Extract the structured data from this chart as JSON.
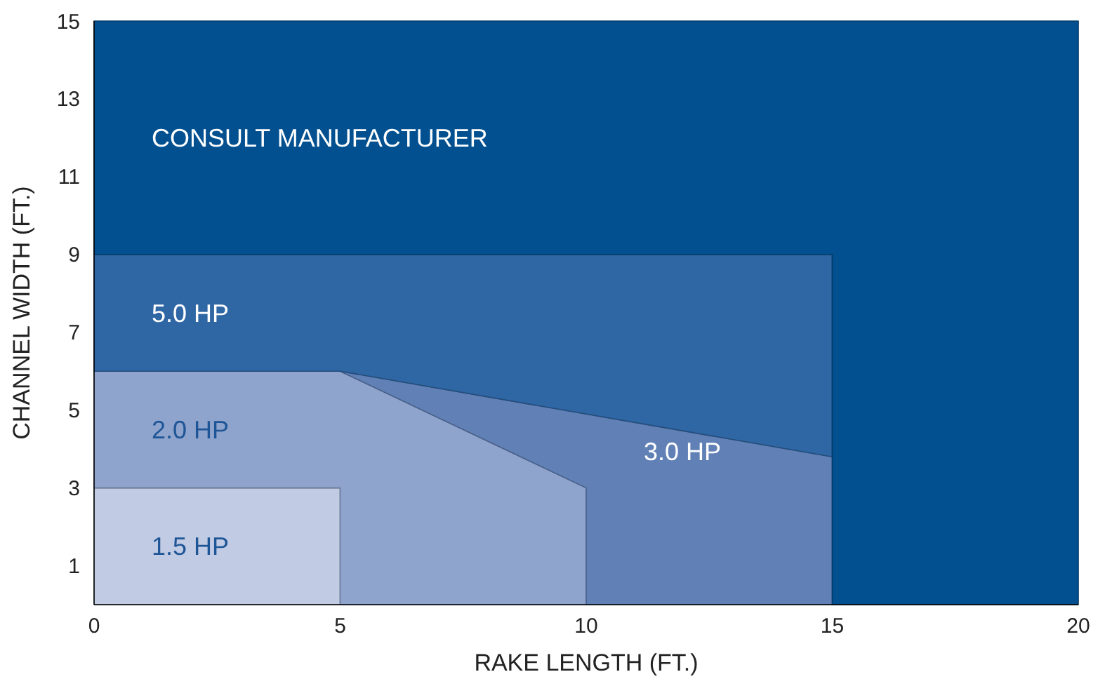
{
  "chart_data": {
    "type": "area",
    "stacked": true,
    "xlabel": "RAKE LENGTH (FT.)",
    "ylabel": "CHANNEL WIDTH (FT.)",
    "xlim": [
      0,
      20
    ],
    "ylim": [
      0,
      15
    ],
    "xticks": [
      0,
      5,
      10,
      15,
      20
    ],
    "yticks": [
      1,
      3,
      5,
      7,
      9,
      11,
      13,
      15
    ],
    "x": [
      0,
      5,
      5,
      10,
      10,
      15,
      15,
      20
    ],
    "series": [
      {
        "name": "1.5 HP",
        "color": "#c1cbe3",
        "values": [
          3,
          3,
          null,
          null,
          null,
          null,
          null,
          null
        ]
      },
      {
        "name": "2.0 HP",
        "color": "#8fa4cd",
        "values": [
          3,
          3,
          6,
          3,
          null,
          null,
          null,
          null
        ]
      },
      {
        "name": "3.0 HP",
        "color": "#6080b6",
        "values": [
          null,
          null,
          0,
          1.9,
          4.9,
          3.8,
          null,
          null
        ]
      },
      {
        "name": "5.0 HP",
        "color": "#2f66a4",
        "values": [
          3,
          3,
          3,
          4.1,
          4.1,
          5.2,
          null,
          null
        ]
      },
      {
        "name": "CONSULT MANUFACTURER",
        "color": "#02508f",
        "values": [
          6,
          6,
          6,
          6,
          6,
          6,
          15,
          15
        ]
      }
    ]
  }
}
